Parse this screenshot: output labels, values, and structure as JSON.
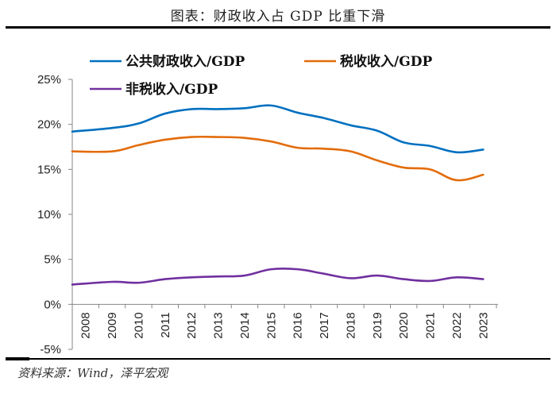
{
  "header": {
    "title": "图表：财政收入占 GDP 比重下滑"
  },
  "footer": {
    "source": "资料来源：Wind，泽平宏观"
  },
  "chart_data": {
    "type": "line",
    "title": "图表：财政收入占 GDP 比重下滑",
    "xlabel": "",
    "ylabel": "",
    "x": [
      "2008",
      "2009",
      "2010",
      "2011",
      "2012",
      "2013",
      "2014",
      "2015",
      "2016",
      "2017",
      "2018",
      "2019",
      "2020",
      "2021",
      "2022",
      "2023"
    ],
    "ylim": [
      -5,
      25
    ],
    "yticks": [
      -5,
      0,
      5,
      10,
      15,
      20,
      25
    ],
    "ytick_labels": [
      "-5%",
      "0%",
      "5%",
      "10%",
      "15%",
      "20%",
      "25%"
    ],
    "grid": false,
    "legend_position": "top-left",
    "series": [
      {
        "name": "公共财政收入/GDP",
        "color": "#0070C0",
        "values": [
          19.2,
          19.6,
          20.1,
          21.2,
          21.7,
          21.7,
          21.8,
          22.1,
          21.3,
          20.7,
          19.9,
          19.3,
          18.0,
          17.6,
          16.9,
          17.2
        ]
      },
      {
        "name": "税收收入/GDP",
        "color": "#E36C0A",
        "values": [
          17.0,
          17.0,
          17.7,
          18.3,
          18.6,
          18.6,
          18.5,
          18.1,
          17.4,
          17.3,
          17.0,
          16.0,
          15.2,
          15.0,
          13.8,
          14.4
        ]
      },
      {
        "name": "非税收入/GDP",
        "color": "#7030A0",
        "values": [
          2.2,
          2.5,
          2.4,
          2.8,
          3.0,
          3.1,
          3.2,
          3.9,
          3.9,
          3.4,
          2.9,
          3.2,
          2.8,
          2.6,
          3.0,
          2.8
        ]
      }
    ]
  }
}
